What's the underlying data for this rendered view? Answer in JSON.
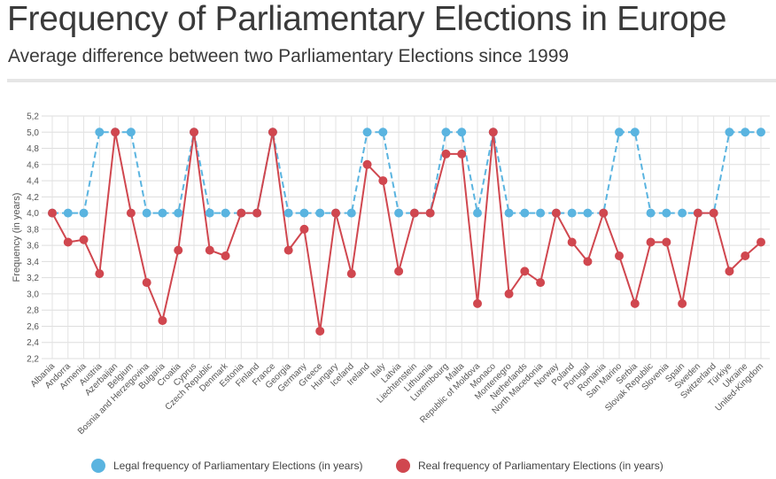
{
  "header": {
    "title": "Frequency of Parliamentary Elections in Europe",
    "subtitle": "Average difference between two Parliamentary Elections since 1999"
  },
  "chart_data": {
    "type": "line",
    "ylabel": "Frequency (in years)",
    "ylim": [
      2.2,
      5.2
    ],
    "yticks": [
      "2,2",
      "2,4",
      "2,6",
      "2,8",
      "3,0",
      "3,2",
      "3,4",
      "3,6",
      "3,8",
      "4,0",
      "4,2",
      "4,4",
      "4,6",
      "4,8",
      "5,0",
      "5,2"
    ],
    "grid": true,
    "legend_position": "bottom",
    "categories": [
      "Albania",
      "Andorra",
      "Armenia",
      "Austria",
      "Azerbaijan",
      "Belgium",
      "Bosnia and Herzegovina",
      "Bulgaria",
      "Croatia",
      "Cyprus",
      "Czech Republic",
      "Denmark",
      "Estonia",
      "Finland",
      "France",
      "Georgia",
      "Germany",
      "Greece",
      "Hungary",
      "Iceland",
      "Ireland",
      "Italy",
      "Latvia",
      "Liechtenstein",
      "Lithuania",
      "Luxembourg",
      "Malta",
      "Republic of Moldova",
      "Monaco",
      "Montenegro",
      "Netherlands",
      "North Macedonia",
      "Norway",
      "Poland",
      "Portugal",
      "Romania",
      "San Marino",
      "Serbia",
      "Slovak Republic",
      "Slovenia",
      "Spain",
      "Sweden",
      "Switzerland",
      "Türkiye",
      "Ukraine",
      "United-Kingdom"
    ],
    "series": [
      {
        "name": "Legal frequency of Parliamentary Elections (in years)",
        "color": "#5ab4e0",
        "values": [
          4,
          4,
          4,
          5,
          5,
          5,
          4,
          4,
          4,
          5,
          4,
          4,
          4,
          4,
          5,
          4,
          4,
          4,
          4,
          4,
          5,
          5,
          4,
          4,
          4,
          5,
          5,
          4,
          5,
          4,
          4,
          4,
          4,
          4,
          4,
          4,
          5,
          5,
          4,
          4,
          4,
          4,
          4,
          5,
          5,
          5
        ]
      },
      {
        "name": "Real frequency of Parliamentary Elections (in years)",
        "color": "#d0474f",
        "values": [
          4.0,
          3.64,
          3.67,
          3.25,
          5.0,
          4.0,
          3.14,
          2.67,
          3.54,
          5.0,
          3.54,
          3.47,
          4.0,
          4.0,
          5.0,
          3.54,
          3.8,
          2.54,
          4.0,
          3.25,
          4.6,
          4.4,
          3.28,
          4.0,
          4.0,
          4.73,
          4.73,
          2.88,
          5.0,
          3.0,
          3.28,
          3.14,
          4.0,
          3.64,
          3.4,
          4.0,
          3.47,
          2.88,
          3.64,
          3.64,
          2.88,
          4.0,
          4.0,
          3.28,
          3.47,
          3.64
        ]
      }
    ]
  }
}
